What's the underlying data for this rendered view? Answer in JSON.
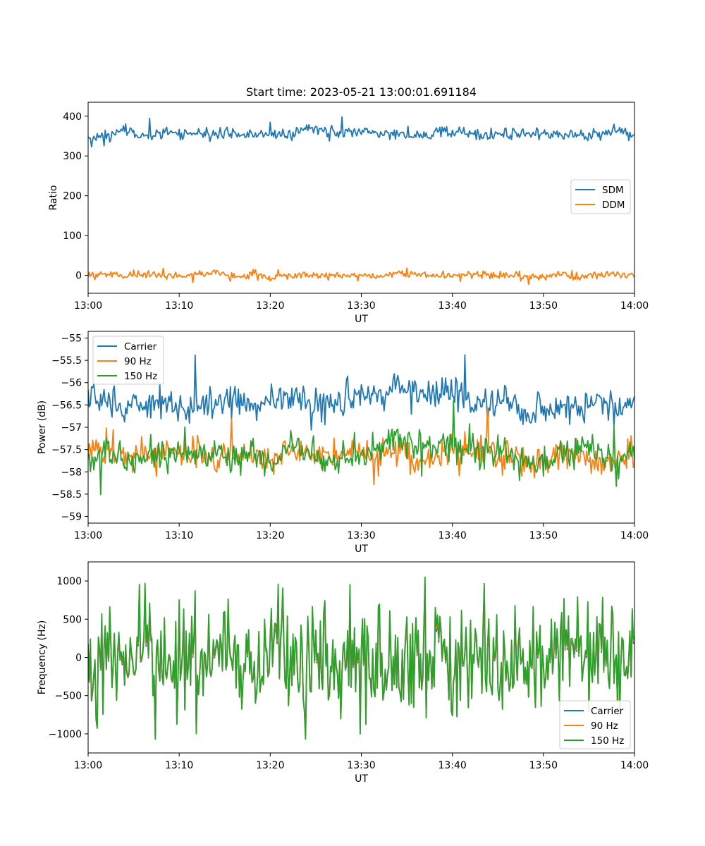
{
  "figure": {
    "title": "Start time: 2023-05-21 13:00:01.691184"
  },
  "chart_data": [
    {
      "type": "line",
      "xlabel": "UT",
      "ylabel": "Ratio",
      "xlim": [
        "13:00",
        "14:00"
      ],
      "ylim": [
        -45,
        435
      ],
      "xticks": [
        "13:00",
        "13:10",
        "13:20",
        "13:30",
        "13:40",
        "13:50",
        "14:00"
      ],
      "yticks": [
        0,
        100,
        200,
        300,
        400
      ],
      "legend_position": "center-right",
      "grid": false,
      "series": [
        {
          "name": "SDM",
          "color": "#1f77b4",
          "x": [
            "13:00",
            "13:02",
            "13:04",
            "13:06",
            "13:08",
            "13:10",
            "13:12",
            "13:14",
            "13:16",
            "13:18",
            "13:20",
            "13:22",
            "13:24",
            "13:26",
            "13:28",
            "13:30",
            "13:32",
            "13:34",
            "13:36",
            "13:38",
            "13:40",
            "13:42",
            "13:44",
            "13:46",
            "13:48",
            "13:50",
            "13:52",
            "13:54",
            "13:56",
            "13:58",
            "14:00"
          ],
          "values": [
            340,
            355,
            360,
            350,
            358,
            362,
            355,
            352,
            360,
            350,
            356,
            352,
            372,
            360,
            355,
            362,
            352,
            358,
            350,
            355,
            360,
            355,
            352,
            357,
            355,
            360,
            350,
            355,
            352,
            365,
            350
          ]
        },
        {
          "name": "DDM",
          "color": "#ff7f0e",
          "x": [
            "13:00",
            "13:02",
            "13:04",
            "13:06",
            "13:08",
            "13:10",
            "13:12",
            "13:14",
            "13:16",
            "13:18",
            "13:20",
            "13:22",
            "13:24",
            "13:26",
            "13:28",
            "13:30",
            "13:32",
            "13:34",
            "13:36",
            "13:38",
            "13:40",
            "13:42",
            "13:44",
            "13:46",
            "13:48",
            "13:50",
            "13:52",
            "13:54",
            "13:56",
            "13:58",
            "14:00"
          ],
          "values": [
            0,
            2,
            -3,
            4,
            0,
            -2,
            3,
            5,
            -1,
            2,
            -4,
            0,
            3,
            -2,
            1,
            0,
            -3,
            6,
            2,
            -1,
            0,
            3,
            -2,
            1,
            0,
            -4,
            2,
            -3,
            1,
            4,
            -2
          ]
        }
      ]
    },
    {
      "type": "line",
      "xlabel": "UT",
      "ylabel": "Power (dB)",
      "xlim": [
        "13:00",
        "14:00"
      ],
      "ylim": [
        -59.15,
        -54.85
      ],
      "xticks": [
        "13:00",
        "13:10",
        "13:20",
        "13:30",
        "13:40",
        "13:50",
        "14:00"
      ],
      "yticks": [
        -55.0,
        -55.5,
        -56.0,
        -56.5,
        -57.0,
        -57.5,
        -58.0,
        -58.5,
        -59.0
      ],
      "legend_position": "top-left",
      "grid": false,
      "series": [
        {
          "name": "Carrier",
          "color": "#1f77b4",
          "x": [
            "13:00",
            "13:02",
            "13:04",
            "13:06",
            "13:08",
            "13:10",
            "13:12",
            "13:14",
            "13:16",
            "13:18",
            "13:20",
            "13:22",
            "13:24",
            "13:26",
            "13:28",
            "13:30",
            "13:32",
            "13:34",
            "13:36",
            "13:38",
            "13:40",
            "13:42",
            "13:44",
            "13:46",
            "13:48",
            "13:50",
            "13:52",
            "13:54",
            "13:56",
            "13:58",
            "14:00"
          ],
          "values": [
            -56.3,
            -56.5,
            -56.6,
            -56.5,
            -56.4,
            -56.6,
            -56.5,
            -56.5,
            -56.4,
            -56.6,
            -56.5,
            -56.3,
            -56.4,
            -56.5,
            -56.4,
            -56.3,
            -56.4,
            -56.0,
            -56.2,
            -56.3,
            -56.1,
            -56.5,
            -56.5,
            -56.4,
            -56.7,
            -56.5,
            -56.6,
            -56.5,
            -56.4,
            -56.6,
            -56.4
          ]
        },
        {
          "name": "90 Hz",
          "color": "#ff7f0e",
          "x": [
            "13:00",
            "13:02",
            "13:04",
            "13:06",
            "13:08",
            "13:10",
            "13:12",
            "13:14",
            "13:16",
            "13:18",
            "13:20",
            "13:22",
            "13:24",
            "13:26",
            "13:28",
            "13:30",
            "13:32",
            "13:34",
            "13:36",
            "13:38",
            "13:40",
            "13:42",
            "13:44",
            "13:46",
            "13:48",
            "13:50",
            "13:52",
            "13:54",
            "13:56",
            "13:58",
            "14:00"
          ],
          "values": [
            -57.6,
            -57.5,
            -57.7,
            -57.6,
            -57.5,
            -57.6,
            -57.5,
            -57.7,
            -57.6,
            -57.6,
            -57.8,
            -57.5,
            -57.6,
            -57.7,
            -57.6,
            -57.5,
            -57.7,
            -57.4,
            -57.8,
            -57.6,
            -57.5,
            -57.6,
            -57.5,
            -57.6,
            -57.7,
            -57.8,
            -57.6,
            -57.6,
            -57.8,
            -57.7,
            -57.7
          ]
        },
        {
          "name": "150 Hz",
          "color": "#2ca02c",
          "x": [
            "13:00",
            "13:02",
            "13:04",
            "13:06",
            "13:08",
            "13:10",
            "13:12",
            "13:14",
            "13:16",
            "13:18",
            "13:20",
            "13:22",
            "13:24",
            "13:26",
            "13:28",
            "13:30",
            "13:32",
            "13:34",
            "13:36",
            "13:38",
            "13:40",
            "13:42",
            "13:44",
            "13:46",
            "13:48",
            "13:50",
            "13:52",
            "13:54",
            "13:56",
            "13:58",
            "14:00"
          ],
          "values": [
            -57.7,
            -57.6,
            -57.8,
            -57.6,
            -57.7,
            -57.5,
            -57.6,
            -57.6,
            -57.7,
            -57.5,
            -57.7,
            -57.4,
            -57.6,
            -57.7,
            -57.8,
            -57.6,
            -57.5,
            -57.3,
            -57.4,
            -57.5,
            -57.4,
            -57.6,
            -57.5,
            -57.6,
            -57.7,
            -57.9,
            -57.6,
            -57.5,
            -57.6,
            -57.7,
            -57.6
          ]
        }
      ]
    },
    {
      "type": "line",
      "xlabel": "UT",
      "ylabel": "Frequency (Hz)",
      "xlim": [
        "13:00",
        "14:00"
      ],
      "ylim": [
        -1250,
        1250
      ],
      "xticks": [
        "13:00",
        "13:10",
        "13:20",
        "13:30",
        "13:40",
        "13:50",
        "14:00"
      ],
      "yticks": [
        1000,
        500,
        0,
        -500,
        -1000
      ],
      "legend_position": "bottom-right",
      "grid": false,
      "series": [
        {
          "name": "Carrier",
          "color": "#1f77b4",
          "x": [
            "13:00",
            "13:02",
            "13:04",
            "13:06",
            "13:08",
            "13:10",
            "13:12",
            "13:14",
            "13:16",
            "13:18",
            "13:20",
            "13:22",
            "13:24",
            "13:26",
            "13:28",
            "13:30",
            "13:32",
            "13:34",
            "13:36",
            "13:38",
            "13:40",
            "13:42",
            "13:44",
            "13:46",
            "13:48",
            "13:50",
            "13:52",
            "13:54",
            "13:56",
            "13:58",
            "14:00"
          ],
          "values": [
            -50,
            20,
            -30,
            40,
            0,
            -20,
            30,
            -10,
            20,
            -60,
            -40,
            10,
            0,
            30,
            -20,
            10,
            -50,
            20,
            -10,
            0,
            20,
            -30,
            10,
            -10,
            0,
            -40,
            20,
            -20,
            10,
            -30,
            0
          ]
        },
        {
          "name": "90 Hz",
          "color": "#ff7f0e",
          "x": [
            "13:00",
            "13:02",
            "13:04",
            "13:06",
            "13:08",
            "13:10",
            "13:12",
            "13:14",
            "13:16",
            "13:18",
            "13:20",
            "13:22",
            "13:24",
            "13:26",
            "13:28",
            "13:30",
            "13:32",
            "13:34",
            "13:36",
            "13:38",
            "13:40",
            "13:42",
            "13:44",
            "13:46",
            "13:48",
            "13:50",
            "13:52",
            "13:54",
            "13:56",
            "13:58",
            "14:00"
          ],
          "values": [
            -20,
            40,
            -10,
            60,
            20,
            0,
            50,
            10,
            40,
            -40,
            -20,
            30,
            20,
            50,
            0,
            30,
            -30,
            40,
            10,
            20,
            40,
            -10,
            30,
            10,
            20,
            -20,
            40,
            0,
            30,
            -10,
            20
          ]
        },
        {
          "name": "150 Hz",
          "color": "#2ca02c",
          "x": [
            "13:00",
            "13:02",
            "13:04",
            "13:06",
            "13:08",
            "13:10",
            "13:12",
            "13:14",
            "13:16",
            "13:18",
            "13:20",
            "13:22",
            "13:24",
            "13:26",
            "13:28",
            "13:30",
            "13:32",
            "13:34",
            "13:36",
            "13:38",
            "13:40",
            "13:42",
            "13:44",
            "13:46",
            "13:48",
            "13:50",
            "13:52",
            "13:54",
            "13:56",
            "13:58",
            "14:00"
          ],
          "values": [
            0,
            60,
            10,
            80,
            40,
            20,
            70,
            30,
            60,
            -20,
            0,
            50,
            40,
            70,
            20,
            50,
            -10,
            60,
            30,
            40,
            60,
            10,
            50,
            30,
            40,
            0,
            60,
            20,
            50,
            10,
            40
          ]
        }
      ]
    }
  ]
}
